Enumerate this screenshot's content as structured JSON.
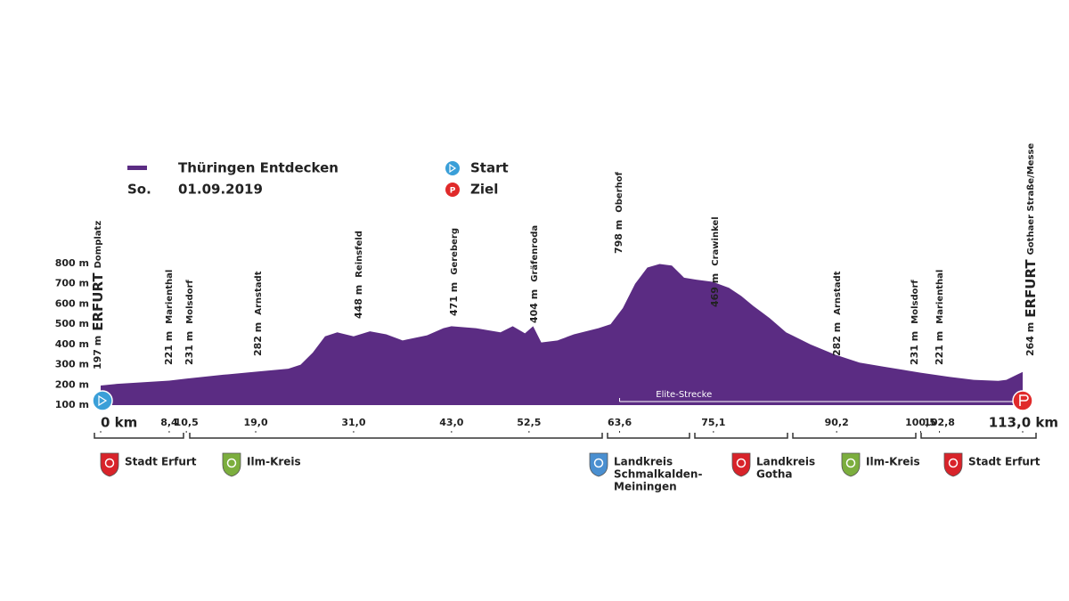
{
  "chart_data": {
    "type": "area",
    "legend": {
      "date_prefix": "So.",
      "date": "01.09.2019",
      "start": "Start",
      "finish": "Ziel"
    },
    "x": [
      0,
      2,
      8.4,
      10.5,
      15,
      19,
      23,
      24.5,
      26,
      27.5,
      29,
      31,
      33,
      35,
      37,
      40,
      42,
      43,
      46,
      49,
      50.5,
      52,
      53,
      54,
      56,
      58,
      61,
      62.5,
      64,
      65.5,
      67,
      68.5,
      70,
      71.5,
      73,
      75,
      77,
      78.5,
      80,
      81,
      82,
      84,
      87,
      90,
      93,
      96,
      100.5,
      104,
      107,
      110,
      111,
      112,
      113
    ],
    "series": [
      {
        "name": "Thüringen Entdecken",
        "color": "#5b2c83",
        "values": [
          197,
          205,
          221,
          231,
          250,
          265,
          280,
          300,
          360,
          440,
          460,
          440,
          465,
          450,
          420,
          445,
          480,
          490,
          480,
          460,
          490,
          455,
          490,
          410,
          420,
          450,
          480,
          500,
          580,
          700,
          780,
          798,
          790,
          730,
          720,
          710,
          680,
          640,
          590,
          560,
          530,
          460,
          400,
          350,
          310,
          290,
          260,
          240,
          225,
          220,
          225,
          245,
          264
        ]
      }
    ],
    "xlim": [
      0,
      113
    ],
    "xticks": [
      {
        "value": 0,
        "label": "0 km"
      },
      {
        "value": 8.4,
        "label": "8,4"
      },
      {
        "value": 10.5,
        "label": "10,5"
      },
      {
        "value": 19,
        "label": "19,0"
      },
      {
        "value": 31,
        "label": "31,0"
      },
      {
        "value": 43,
        "label": "43,0"
      },
      {
        "value": 52.5,
        "label": "52,5"
      },
      {
        "value": 63.6,
        "label": "63,6"
      },
      {
        "value": 75.1,
        "label": "75,1"
      },
      {
        "value": 90.2,
        "label": "90,2"
      },
      {
        "value": 100.5,
        "label": "100,5"
      },
      {
        "value": 102.8,
        "label": "102,8"
      },
      {
        "value": 113,
        "label": "113,0 km"
      }
    ],
    "ylim": [
      100,
      800
    ],
    "yticks": [
      {
        "value": 100,
        "label": "100 m"
      },
      {
        "value": 200,
        "label": "200 m"
      },
      {
        "value": 300,
        "label": "300 m"
      },
      {
        "value": 400,
        "label": "400 m"
      },
      {
        "value": 500,
        "label": "500 m"
      },
      {
        "value": 600,
        "label": "600 m"
      },
      {
        "value": 700,
        "label": "700 m"
      },
      {
        "value": 800,
        "label": "800 m"
      }
    ],
    "annotations": [
      {
        "elevation": "197 m",
        "place": "ERFURT",
        "detail": "Domplatz"
      },
      {
        "elevation": "221 m",
        "detail": "Marienthal"
      },
      {
        "elevation": "231 m",
        "detail": "Molsdorf"
      },
      {
        "elevation": "282 m",
        "detail": "Arnstadt"
      },
      {
        "elevation": "448 m",
        "detail": "Reinsfeld"
      },
      {
        "elevation": "471 m",
        "detail": "Gereberg"
      },
      {
        "elevation": "404 m",
        "detail": "Gräfenroda"
      },
      {
        "elevation": "798 m",
        "detail": "Oberhof"
      },
      {
        "elevation": "469 m",
        "detail": "Crawinkel"
      },
      {
        "elevation": "282 m",
        "detail": "Arnstadt"
      },
      {
        "elevation": "231 m",
        "detail": "Molsdorf"
      },
      {
        "elevation": "221 m",
        "detail": "Marienthal"
      },
      {
        "elevation": "264 m",
        "place": "ERFURT",
        "detail": "Gothaer Straße/Messe"
      }
    ],
    "route_label": "Elite-Strecke",
    "regions": [
      [
        "Stadt Erfurt"
      ],
      [
        "Ilm-Kreis"
      ],
      [
        "Landkreis",
        "Schmalkalden-",
        "Meiningen"
      ],
      [
        "Landkreis",
        "Gotha"
      ],
      [
        "Ilm-Kreis"
      ],
      [
        "Stadt Erfurt"
      ]
    ]
  }
}
